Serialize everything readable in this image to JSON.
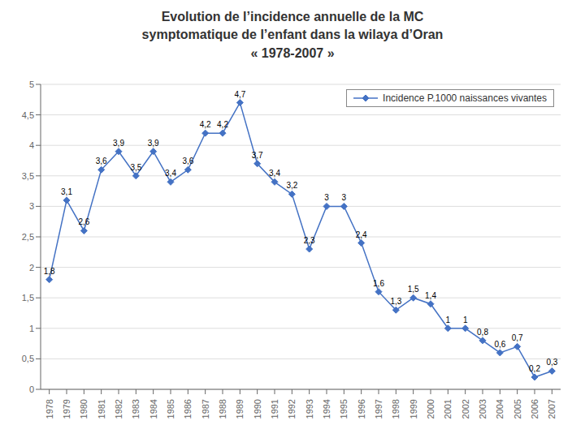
{
  "chart_data": {
    "type": "line",
    "title": "Evolution de l’incidence annuelle de la MC\nsymptomatique de l’enfant dans la wilaya d’Oran\n« 1978-2007 »",
    "x": [
      1978,
      1979,
      1980,
      1981,
      1982,
      1983,
      1984,
      1985,
      1986,
      1987,
      1988,
      1989,
      1990,
      1991,
      1992,
      1993,
      1994,
      1995,
      1996,
      1997,
      1998,
      1999,
      2000,
      2001,
      2002,
      2003,
      2004,
      2005,
      2006,
      2007
    ],
    "series": [
      {
        "name": "Incidence P.1000 naissances vivantes",
        "color": "#4472C4",
        "marker": "diamond",
        "values": [
          1.8,
          3.1,
          2.6,
          3.6,
          3.9,
          3.5,
          3.9,
          3.4,
          3.6,
          4.2,
          4.2,
          4.7,
          3.7,
          3.4,
          3.2,
          2.3,
          3.0,
          3.0,
          2.4,
          1.6,
          1.3,
          1.5,
          1.4,
          1.0,
          1.0,
          0.8,
          0.6,
          0.7,
          0.2,
          0.3
        ],
        "value_labels": [
          "1,8",
          "3,1",
          "2,6",
          "3,6",
          "3,9",
          "3,5",
          "3,9",
          "3,4",
          "3,6",
          "4,2",
          "4,2",
          "4,7",
          "3,7",
          "3,4",
          "3,2",
          "2,3",
          "3",
          "3",
          "2,4",
          "1,6",
          "1,3",
          "1,5",
          "1,4",
          "1",
          "1",
          "0,8",
          "0,6",
          "0,7",
          "0,2",
          "0,3"
        ]
      }
    ],
    "xlim": [
      1977.5,
      2007.5
    ],
    "xticks": [
      1978,
      1979,
      1980,
      1981,
      1982,
      1983,
      1984,
      1985,
      1986,
      1987,
      1988,
      1989,
      1990,
      1991,
      1992,
      1993,
      1994,
      1995,
      1996,
      1997,
      1998,
      1999,
      2000,
      2001,
      2002,
      2003,
      2004,
      2005,
      2006,
      2007
    ],
    "ylim": [
      0,
      5
    ],
    "yticks": [
      0,
      {
        "value": 0.5,
        "label": "0,5"
      },
      1,
      {
        "value": 1.5,
        "label": "1,5"
      },
      2,
      {
        "value": 2.5,
        "label": "2,5"
      },
      3,
      {
        "value": 3.5,
        "label": "3,5"
      },
      4,
      {
        "value": 4.5,
        "label": "4,5"
      },
      5
    ],
    "grid": "y",
    "legend": "upper right",
    "data_labels": true
  }
}
